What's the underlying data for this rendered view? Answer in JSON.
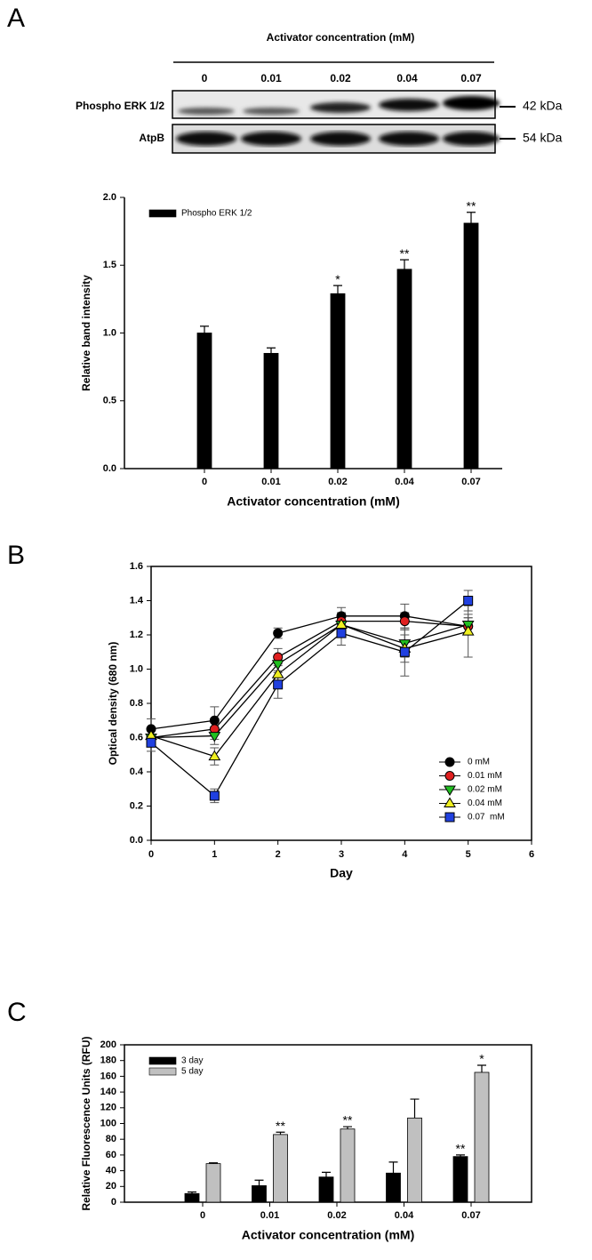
{
  "panels": [
    "A",
    "B",
    "C"
  ],
  "blot": {
    "title": "Activator concentration (mM)",
    "lanes": [
      "0",
      "0.01",
      "0.02",
      "0.04",
      "0.07"
    ],
    "rows": [
      {
        "label": "Phospho ERK 1/2",
        "size": "42 kDa"
      },
      {
        "label": "AtpB",
        "size": "54 kDa"
      }
    ]
  },
  "chart_data": [
    {
      "type": "bar",
      "xlabel": "Activator concentration (mM)",
      "ylabel": "Relative band intensity",
      "categories": [
        "0",
        "0.01",
        "0.02",
        "0.04",
        "0.07"
      ],
      "series": [
        {
          "name": "Phospho ERK 1/2",
          "color": "#000000",
          "values": [
            1.0,
            0.85,
            1.29,
            1.47,
            1.81
          ],
          "errors": [
            0.05,
            0.04,
            0.06,
            0.07,
            0.08
          ],
          "significance": [
            null,
            null,
            "*",
            "**",
            "**"
          ]
        }
      ],
      "ylim": [
        0,
        2
      ],
      "yticks": [
        {
          "value": 0,
          "label": "0.0"
        },
        0.5,
        {
          "value": 1,
          "label": "1.0"
        },
        1.5,
        {
          "value": 2,
          "label": "2.0"
        }
      ],
      "legend": "top-left"
    },
    {
      "type": "line",
      "xlabel": "Day",
      "ylabel": "Optical density (680 nm)",
      "x": [
        0,
        1,
        2,
        3,
        4,
        5
      ],
      "series": [
        {
          "name": "0 mM",
          "color": "#000000",
          "marker": "circle",
          "values": [
            0.65,
            0.7,
            1.21,
            1.31,
            1.31,
            1.25
          ],
          "errors": [
            0.06,
            0.08,
            0.03,
            0.05,
            0.07,
            0.05
          ]
        },
        {
          "name": "0.01 mM",
          "color": "#e02020",
          "marker": "circle",
          "values": [
            0.6,
            0.65,
            1.07,
            1.28,
            1.28,
            1.25
          ],
          "errors": [
            0.05,
            0.06,
            0.05,
            0.05,
            0.05,
            0.05
          ]
        },
        {
          "name": "0.02 mM",
          "color": "#20c020",
          "marker": "triangle-down",
          "values": [
            0.6,
            0.61,
            1.03,
            1.26,
            1.15,
            1.26
          ],
          "errors": [
            0.05,
            0.05,
            0.05,
            0.06,
            0.08,
            0.06
          ]
        },
        {
          "name": "0.04 mM",
          "color": "#f0f020",
          "marker": "triangle-up",
          "values": [
            0.61,
            0.49,
            0.97,
            1.26,
            1.12,
            1.22
          ],
          "errors": [
            0.05,
            0.05,
            0.06,
            0.06,
            0.08,
            0.15
          ]
        },
        {
          "name": "0.07  mM",
          "color": "#2040e0",
          "marker": "square",
          "values": [
            0.57,
            0.26,
            0.91,
            1.21,
            1.1,
            1.4
          ],
          "errors": [
            0.05,
            0.04,
            0.08,
            0.07,
            0.14,
            0.06
          ]
        }
      ],
      "xlim": [
        0,
        6
      ],
      "xticks": [
        0,
        1,
        2,
        3,
        4,
        5,
        6
      ],
      "ylim": [
        0,
        1.6
      ],
      "yticks": [
        {
          "value": 0,
          "label": "0.0"
        },
        0.2,
        0.4,
        0.6,
        0.8,
        {
          "value": 1,
          "label": "1.0"
        },
        1.2,
        1.4,
        1.6
      ],
      "legend": "bottom-right"
    },
    {
      "type": "bar",
      "xlabel": "Activator concentration (mM)",
      "ylabel": "Relative Fluorescence Units (RFU)",
      "categories": [
        "0",
        "0.01",
        "0.02",
        "0.04",
        "0.07"
      ],
      "series": [
        {
          "name": "3 day",
          "color": "#000000",
          "values": [
            11,
            21,
            32,
            37,
            58
          ],
          "errors": [
            2,
            7,
            6,
            14,
            2
          ],
          "significance": [
            null,
            null,
            null,
            null,
            "**"
          ]
        },
        {
          "name": "5 day",
          "color": "#c0c0c0",
          "values": [
            49,
            86,
            93,
            107,
            165
          ],
          "errors": [
            1,
            3,
            3,
            24,
            9
          ],
          "significance": [
            null,
            "**",
            "**",
            null,
            "*"
          ]
        }
      ],
      "ylim": [
        0,
        200
      ],
      "yticks": [
        0,
        20,
        40,
        60,
        80,
        100,
        120,
        140,
        160,
        180,
        200
      ],
      "legend": "top-left"
    }
  ]
}
